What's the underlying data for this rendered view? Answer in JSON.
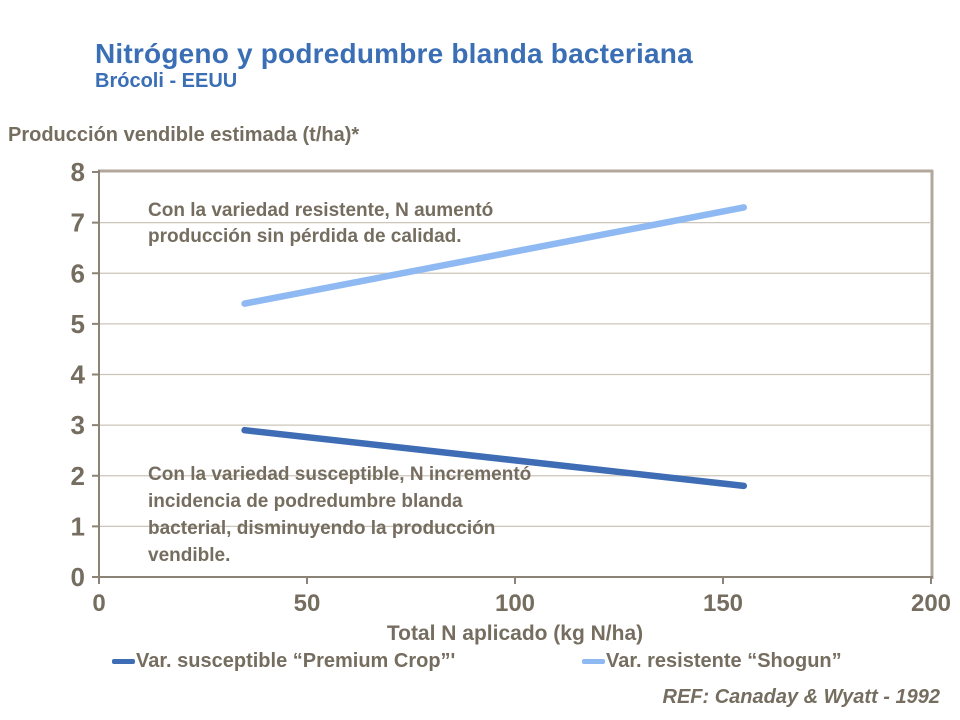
{
  "title": "Nitrógeno y podredumbre blanda bacteriana",
  "subtitle": "Brócoli - EEUU",
  "y_axis_title": "Producción vendible estimada (t/ha)*",
  "x_axis_title": "Total N aplicado (kg N/ha)",
  "annotations": {
    "resistant_lines": [
      "Con la variedad resistente, N aumentó",
      "producción sin pérdida de calidad."
    ],
    "susceptible_lines": [
      "Con la variedad susceptible, N incrementó",
      "incidencia de podredumbre blanda",
      "bacterial, disminuyendo la producción",
      "vendible."
    ]
  },
  "legend": {
    "items": [
      {
        "label": "Var. susceptible “Premium Crop”'",
        "color": "#3e6cb5"
      },
      {
        "label": "Var. resistente “Shogun”",
        "color": "#8fb9f2"
      }
    ]
  },
  "footer_ref": "REF: Canaday & Wyatt - 1992",
  "colors": {
    "title_blue": "#3a6eb5",
    "text_gray": "#756d5f",
    "grid": "#ccc5ba",
    "axis": "#8b8376",
    "border": "#b1a89b",
    "series_susceptible": "#3e6cb5",
    "series_resistant": "#8fb9f2"
  },
  "chart_data": {
    "type": "line",
    "title": "Nitrógeno y podredumbre blanda bacteriana — Brócoli - EEUU",
    "xlabel": "Total N aplicado (kg N/ha)",
    "ylabel": "Producción vendible estimada (t/ha)*",
    "xlim": [
      0,
      200
    ],
    "ylim": [
      0,
      8
    ],
    "x_ticks": [
      0,
      50,
      100,
      150,
      200
    ],
    "y_ticks": [
      0,
      1,
      2,
      3,
      4,
      5,
      6,
      7,
      8
    ],
    "grid": "horizontal",
    "legend_position": "bottom",
    "series": [
      {
        "name": "Var. susceptible “Premium Crop”'",
        "color": "#3e6cb5",
        "x": [
          35,
          155
        ],
        "y": [
          2.9,
          1.8
        ]
      },
      {
        "name": "Var. resistente “Shogun”",
        "color": "#8fb9f2",
        "x": [
          35,
          155
        ],
        "y": [
          5.4,
          7.3
        ]
      }
    ],
    "annotations": [
      "Con la variedad resistente, N aumentó producción sin pérdida de calidad.",
      "Con la variedad susceptible, N incrementó incidencia de podredumbre blanda bacterial, disminuyendo la producción vendible."
    ],
    "reference": "REF: Canaday & Wyatt - 1992"
  }
}
